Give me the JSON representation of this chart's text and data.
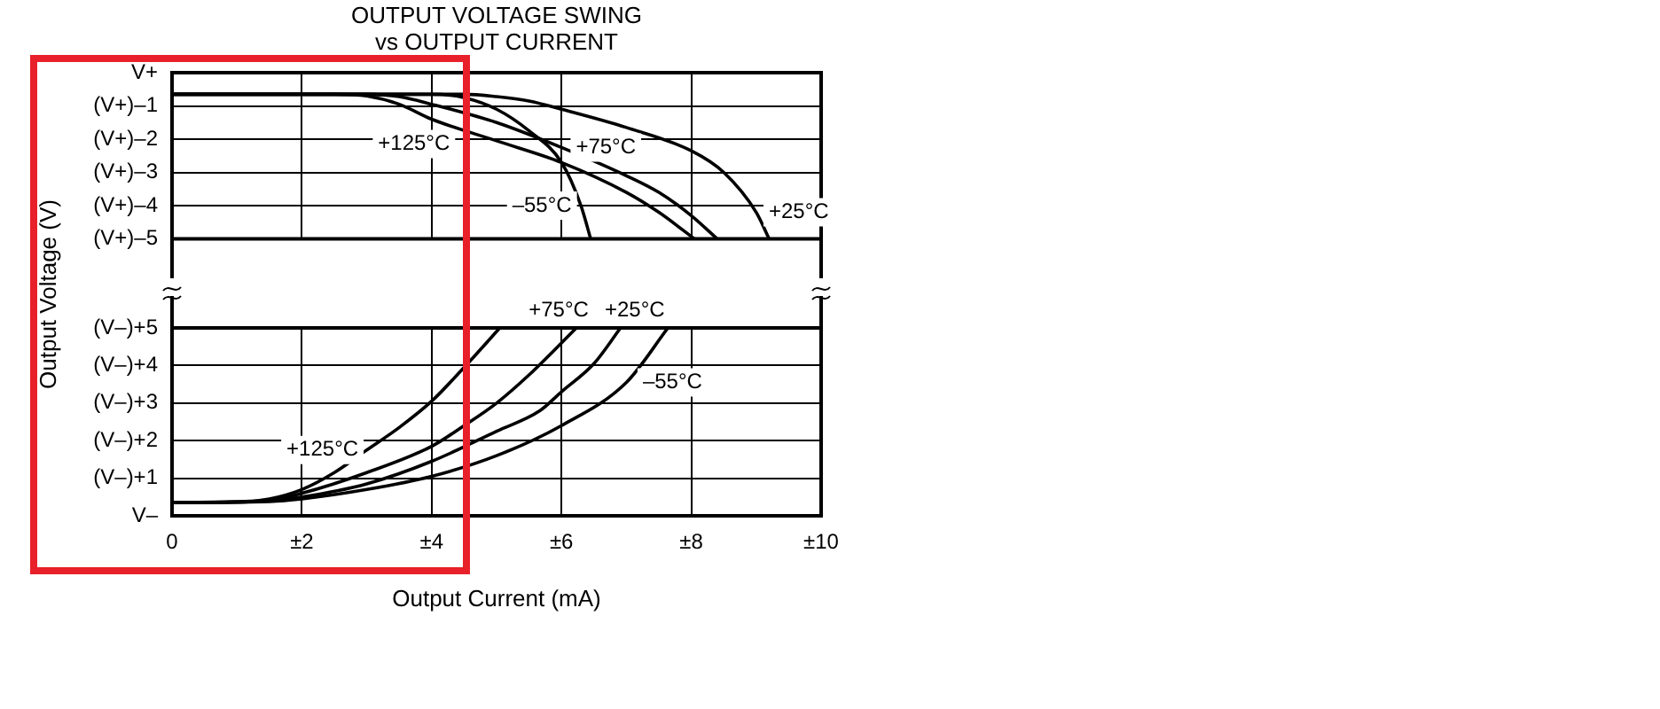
{
  "chart_data": [
    {
      "type": "line",
      "title": "OUTPUT VOLTAGE SWING\nvs OUTPUT CURRENT",
      "ylabel": "Output Voltage (V)",
      "xlim": [
        0,
        10
      ],
      "xticks": [
        0,
        2,
        4,
        6,
        8,
        10
      ],
      "tick_labels": "y",
      "ylim": [
        -5,
        0
      ],
      "yticks": [
        {
          "value": 0,
          "label": "V+"
        },
        {
          "value": -1,
          "label": "(V+)–1"
        },
        {
          "value": -2,
          "label": "(V+)–2"
        },
        {
          "value": -3,
          "label": "(V+)–3"
        },
        {
          "value": -4,
          "label": "(V+)–4"
        },
        {
          "value": -5,
          "label": "(V+)–5"
        }
      ],
      "grid": true,
      "series": [
        {
          "name": "+125°C",
          "color": "#000000",
          "x": [
            0,
            2.5,
            3,
            3.5,
            4,
            5,
            6,
            7,
            7.5,
            8.05
          ],
          "values": [
            -0.65,
            -0.65,
            -0.7,
            -0.95,
            -1.4,
            -2.05,
            -2.7,
            -3.6,
            -4.2,
            -5
          ]
        },
        {
          "name": "+75°C",
          "color": "#000000",
          "x": [
            0,
            3,
            3.5,
            4,
            5,
            6,
            7,
            7.5,
            8,
            8.4
          ],
          "values": [
            -0.65,
            -0.65,
            -0.72,
            -0.95,
            -1.5,
            -2.25,
            -3.1,
            -3.6,
            -4.3,
            -5
          ]
        },
        {
          "name": "+25°C",
          "color": "#000000",
          "x": [
            0,
            4.5,
            5,
            5.5,
            6,
            7,
            8,
            8.5,
            9,
            9.2
          ],
          "values": [
            -0.65,
            -0.65,
            -0.72,
            -0.85,
            -1.1,
            -1.65,
            -2.35,
            -3,
            -4.2,
            -5
          ]
        },
        {
          "name": "–55°C",
          "color": "#000000",
          "x": [
            0,
            4,
            4.5,
            5,
            5.5,
            6,
            6.3,
            6.45
          ],
          "values": [
            -0.65,
            -0.65,
            -0.75,
            -1.1,
            -1.75,
            -2.7,
            -4,
            -5
          ]
        }
      ]
    },
    {
      "type": "line",
      "xlabel": "Output Current (mA)",
      "xlim": [
        0,
        10
      ],
      "xticks": [
        0,
        {
          "value": 2,
          "label": "±2"
        },
        {
          "value": 4,
          "label": "±4"
        },
        {
          "value": 6,
          "label": "±6"
        },
        {
          "value": 8,
          "label": "±8"
        },
        {
          "value": 10,
          "label": "±10"
        }
      ],
      "ylim": [
        0,
        5
      ],
      "yticks": [
        {
          "value": 5,
          "label": "(V–)+5"
        },
        {
          "value": 4,
          "label": "(V–)+4"
        },
        {
          "value": 3,
          "label": "(V–)+3"
        },
        {
          "value": 2,
          "label": "(V–)+2"
        },
        {
          "value": 1,
          "label": "(V–)+1"
        },
        {
          "value": 0,
          "label": "V–"
        }
      ],
      "grid": true,
      "series": [
        {
          "name": "+125°C",
          "color": "#000000",
          "x": [
            0,
            1,
            1.5,
            2,
            2.5,
            3,
            3.5,
            4,
            4.5,
            5.05
          ],
          "values": [
            0.35,
            0.36,
            0.45,
            0.7,
            1.15,
            1.75,
            2.35,
            3.05,
            3.95,
            5
          ]
        },
        {
          "name": "+75°C",
          "color": "#000000",
          "x": [
            0,
            1.5,
            2,
            3,
            4,
            4.5,
            5,
            5.5,
            6.23
          ],
          "values": [
            0.35,
            0.42,
            0.6,
            1.15,
            1.85,
            2.4,
            3,
            3.75,
            5
          ]
        },
        {
          "name": "+25°C",
          "color": "#000000",
          "x": [
            0,
            1.5,
            2,
            3,
            4,
            5,
            5.67,
            6,
            6.5,
            6.91
          ],
          "values": [
            0.35,
            0.4,
            0.5,
            0.85,
            1.45,
            2.25,
            2.8,
            3.3,
            4.05,
            5
          ]
        },
        {
          "name": "–55°C",
          "color": "#000000",
          "x": [
            0,
            1.5,
            2,
            3,
            4,
            5,
            6,
            7,
            7.64
          ],
          "values": [
            0.35,
            0.38,
            0.45,
            0.7,
            1.05,
            1.6,
            2.4,
            3.55,
            5
          ]
        }
      ]
    }
  ]
}
